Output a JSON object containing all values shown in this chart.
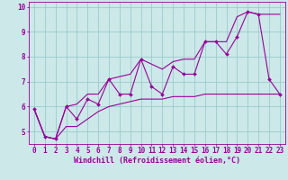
{
  "xlabel": "Windchill (Refroidissement éolien,°C)",
  "background_color": "#cce8e8",
  "line_color": "#990099",
  "grid_color": "#99cccc",
  "x_data": [
    0,
    1,
    2,
    3,
    4,
    5,
    6,
    7,
    8,
    9,
    10,
    11,
    12,
    13,
    14,
    15,
    16,
    17,
    18,
    19,
    20,
    21,
    22,
    23
  ],
  "y_actual": [
    5.9,
    4.8,
    4.7,
    6.0,
    5.5,
    6.3,
    6.1,
    7.1,
    6.5,
    6.5,
    7.9,
    6.8,
    6.5,
    7.6,
    7.3,
    7.3,
    8.6,
    8.6,
    8.1,
    8.8,
    9.8,
    9.7,
    7.1,
    6.5
  ],
  "y_min": [
    5.9,
    4.8,
    4.7,
    5.2,
    5.2,
    5.5,
    5.8,
    6.0,
    6.1,
    6.2,
    6.3,
    6.3,
    6.3,
    6.4,
    6.4,
    6.4,
    6.5,
    6.5,
    6.5,
    6.5,
    6.5,
    6.5,
    6.5,
    6.5
  ],
  "y_max": [
    5.9,
    4.8,
    4.7,
    6.0,
    6.1,
    6.5,
    6.5,
    7.1,
    7.2,
    7.3,
    7.9,
    7.7,
    7.5,
    7.8,
    7.9,
    7.9,
    8.6,
    8.6,
    8.6,
    9.6,
    9.8,
    9.7,
    9.7,
    9.7
  ],
  "ylim": [
    4.5,
    10.2
  ],
  "xlim": [
    -0.5,
    23.5
  ],
  "yticks": [
    5,
    6,
    7,
    8,
    9,
    10
  ],
  "xticks": [
    0,
    1,
    2,
    3,
    4,
    5,
    6,
    7,
    8,
    9,
    10,
    11,
    12,
    13,
    14,
    15,
    16,
    17,
    18,
    19,
    20,
    21,
    22,
    23
  ],
  "tick_fontsize": 5.5,
  "xlabel_fontsize": 6.0
}
